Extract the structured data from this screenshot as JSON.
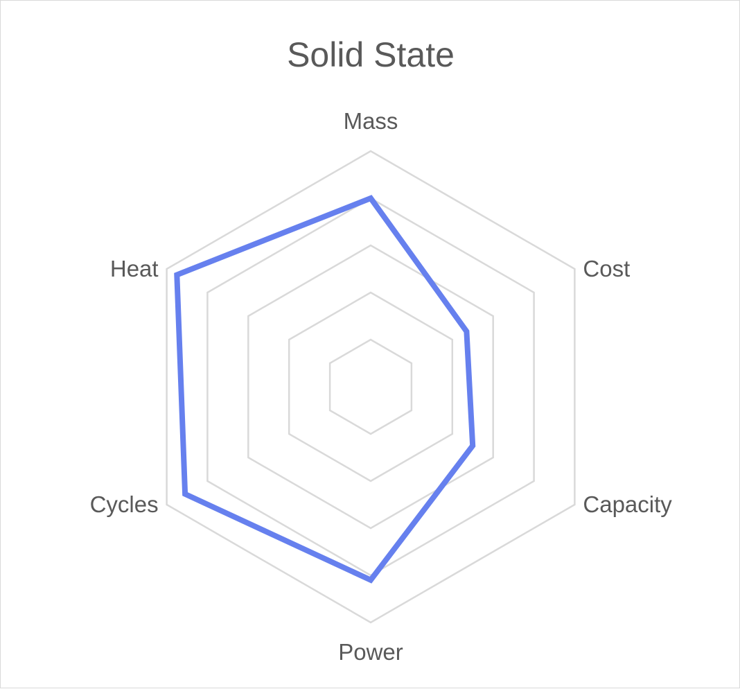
{
  "chart_data": {
    "type": "radar",
    "title": "Solid State",
    "categories": [
      "Mass",
      "Cost",
      "Capacity",
      "Power",
      "Cycles",
      "Heat"
    ],
    "series": [
      {
        "values": [
          80,
          47,
          50,
          82,
          91,
          95
        ],
        "color": "#6680ee"
      }
    ],
    "rlim": [
      0,
      100
    ],
    "rings": [
      20,
      40,
      60,
      80,
      100
    ],
    "grid": true,
    "legend": "none",
    "grid_color": "#d9d9d9",
    "text_color": "#595959"
  }
}
